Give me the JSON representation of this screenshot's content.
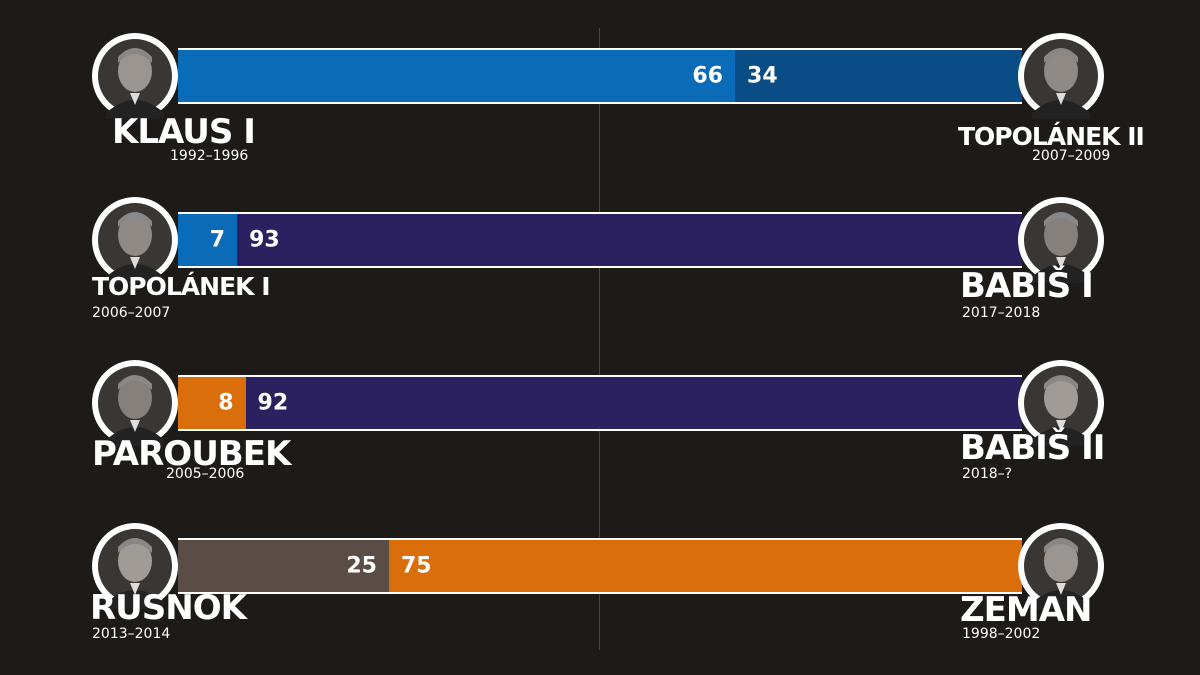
{
  "colors": {
    "background": "#1d1a17",
    "ods_blue": "#0a6cb8",
    "ods_dark_blue": "#0a4c86",
    "ano_purple": "#2b2160",
    "cssd_orange": "#d96e0a",
    "neutral_brown": "#5a4d45"
  },
  "chart_data": {
    "type": "bar",
    "orientation": "horizontal-stacked",
    "rows": [
      {
        "left": {
          "name": "KLAUS I",
          "years": "1992–1996"
        },
        "right": {
          "name": "TOPOLÁNEK II",
          "years": "2007–2009"
        },
        "values": [
          66,
          34
        ],
        "colors": [
          "#0a6cb8",
          "#0a4c86"
        ]
      },
      {
        "left": {
          "name": "TOPOLÁNEK I",
          "years": "2006–2007"
        },
        "right": {
          "name": "BABIŠ I",
          "years": "2017–2018"
        },
        "values": [
          7,
          93
        ],
        "colors": [
          "#0a6cb8",
          "#2b2160"
        ]
      },
      {
        "left": {
          "name": "PAROUBEK",
          "years": "2005–2006"
        },
        "right": {
          "name": "BABIŠ II",
          "years": "2018–?"
        },
        "values": [
          8,
          92
        ],
        "colors": [
          "#d96e0a",
          "#2b2160"
        ]
      },
      {
        "left": {
          "name": "RUSNOK",
          "years": "2013–2014"
        },
        "right": {
          "name": "ZEMAN",
          "years": "1998–2002"
        },
        "values": [
          25,
          75
        ],
        "colors": [
          "#5a4d45",
          "#d96e0a"
        ]
      }
    ],
    "total": 100,
    "grid": false,
    "center_line": true
  }
}
